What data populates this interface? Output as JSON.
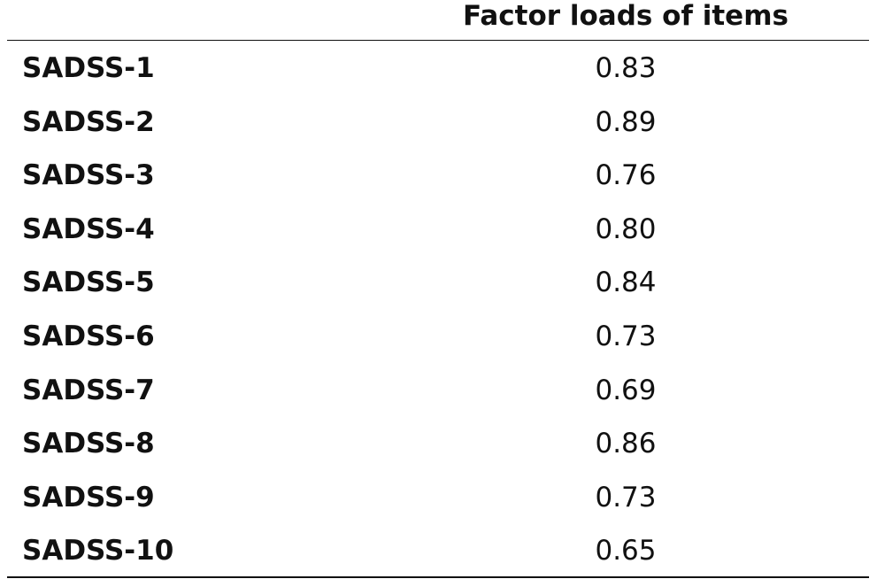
{
  "table": {
    "header": [
      "",
      "Factor loads of items"
    ],
    "rows": [
      [
        "SADSS-1",
        "0.83"
      ],
      [
        "SADSS-2",
        "0.89"
      ],
      [
        "SADSS-3",
        "0.76"
      ],
      [
        "SADSS-4",
        "0.80"
      ],
      [
        "SADSS-5",
        "0.84"
      ],
      [
        "SADSS-6",
        "0.73"
      ],
      [
        "SADSS-7",
        "0.69"
      ],
      [
        "SADSS-8",
        "0.86"
      ],
      [
        "SADSS-9",
        "0.73"
      ],
      [
        "SADSS-10",
        "0.65"
      ]
    ]
  }
}
